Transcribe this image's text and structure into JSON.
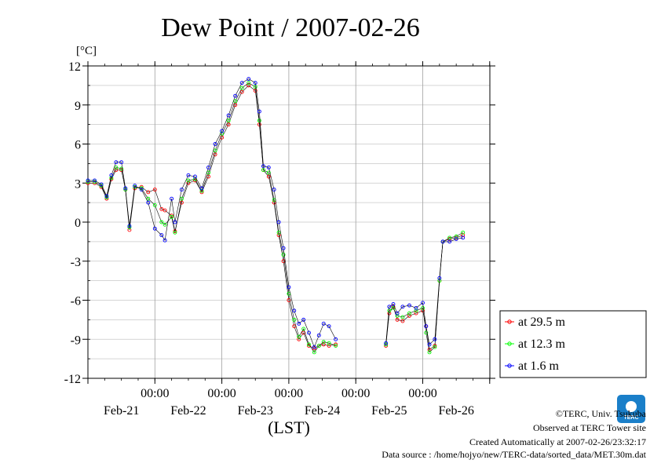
{
  "chart_data": {
    "type": "line",
    "title": "Dew Point / 2007-02-26",
    "ylabel": "[°C]",
    "xlabel": "(LST)",
    "ylim": [
      -12,
      12
    ],
    "xlim": [
      0,
      6
    ],
    "y_ticks": [
      12,
      9,
      6,
      3,
      0,
      -3,
      -6,
      -9,
      -12
    ],
    "y_tick_labels": [
      "12",
      "9",
      "6",
      "3",
      "0",
      "-3",
      "-6",
      "-9",
      "-12"
    ],
    "x_time_labels": [
      "00:00",
      "00:00",
      "00:00",
      "00:00",
      "00:00"
    ],
    "x_date_labels": [
      "Feb-21",
      "Feb-22",
      "Feb-23",
      "Feb-24",
      "Feb-25",
      "Feb-26"
    ],
    "grid": true,
    "legend_position": "right",
    "series": [
      {
        "name": "at 29.5 m",
        "color": "#ff0000",
        "points": [
          [
            0,
            3.0
          ],
          [
            0.1,
            3.0
          ],
          [
            0.2,
            2.7
          ],
          [
            0.28,
            1.8
          ],
          [
            0.35,
            3.3
          ],
          [
            0.42,
            4.0
          ],
          [
            0.5,
            4.0
          ],
          [
            0.56,
            2.5
          ],
          [
            0.62,
            -0.6
          ],
          [
            0.7,
            2.6
          ],
          [
            0.8,
            2.7
          ],
          [
            0.9,
            2.3
          ],
          [
            1.0,
            2.5
          ],
          [
            1.1,
            1.0
          ],
          [
            1.15,
            0.9
          ],
          [
            1.25,
            0.5
          ],
          [
            1.3,
            -0.7
          ],
          [
            1.4,
            1.5
          ],
          [
            1.5,
            3.0
          ],
          [
            1.6,
            3.2
          ],
          [
            1.7,
            2.3
          ],
          [
            1.8,
            3.5
          ],
          [
            1.9,
            5.2
          ],
          [
            2.0,
            6.5
          ],
          [
            2.1,
            7.5
          ],
          [
            2.2,
            9.0
          ],
          [
            2.3,
            10.0
          ],
          [
            2.4,
            10.5
          ],
          [
            2.5,
            10.1
          ],
          [
            2.56,
            7.5
          ],
          [
            2.62,
            4.0
          ],
          [
            2.7,
            3.5
          ],
          [
            2.78,
            1.5
          ],
          [
            2.85,
            -1.0
          ],
          [
            2.92,
            -3.0
          ],
          [
            3.0,
            -6.0
          ],
          [
            3.08,
            -8.0
          ],
          [
            3.15,
            -9.0
          ],
          [
            3.22,
            -8.5
          ],
          [
            3.3,
            -9.5
          ],
          [
            3.38,
            -9.7
          ],
          [
            3.45,
            -9.5
          ],
          [
            3.52,
            -9.4
          ],
          [
            3.6,
            -9.5
          ],
          [
            3.7,
            -9.4
          ]
        ],
        "gaps": [
          [
            3.7,
            4.45
          ]
        ],
        "points_after_gap": [
          [
            4.45,
            -9.5
          ],
          [
            4.5,
            -7.0
          ],
          [
            4.56,
            -6.5
          ],
          [
            4.62,
            -7.5
          ],
          [
            4.7,
            -7.6
          ],
          [
            4.8,
            -7.2
          ],
          [
            4.9,
            -7.0
          ],
          [
            5.0,
            -6.8
          ],
          [
            5.05,
            -8.0
          ],
          [
            5.1,
            -9.8
          ],
          [
            5.18,
            -9.5
          ],
          [
            5.25,
            -4.5
          ],
          [
            5.3,
            -1.5
          ],
          [
            5.4,
            -1.3
          ],
          [
            5.5,
            -1.2
          ],
          [
            5.6,
            -1.0
          ]
        ]
      },
      {
        "name": "at 12.3 m",
        "color": "#00ff00",
        "points": [
          [
            0,
            3.1
          ],
          [
            0.1,
            3.1
          ],
          [
            0.2,
            2.8
          ],
          [
            0.28,
            1.9
          ],
          [
            0.35,
            3.4
          ],
          [
            0.42,
            4.2
          ],
          [
            0.5,
            4.1
          ],
          [
            0.56,
            2.5
          ],
          [
            0.62,
            -0.4
          ],
          [
            0.7,
            2.7
          ],
          [
            0.8,
            2.6
          ],
          [
            0.9,
            1.8
          ],
          [
            1.0,
            1.3
          ],
          [
            1.1,
            0.0
          ],
          [
            1.15,
            -0.2
          ],
          [
            1.25,
            0.4
          ],
          [
            1.3,
            -0.8
          ],
          [
            1.4,
            1.8
          ],
          [
            1.5,
            3.2
          ],
          [
            1.6,
            3.3
          ],
          [
            1.7,
            2.4
          ],
          [
            1.8,
            3.8
          ],
          [
            1.9,
            5.5
          ],
          [
            2.0,
            6.8
          ],
          [
            2.1,
            7.8
          ],
          [
            2.2,
            9.3
          ],
          [
            2.3,
            10.3
          ],
          [
            2.4,
            10.7
          ],
          [
            2.5,
            10.4
          ],
          [
            2.56,
            7.8
          ],
          [
            2.62,
            4.0
          ],
          [
            2.7,
            3.8
          ],
          [
            2.78,
            1.7
          ],
          [
            2.85,
            -0.8
          ],
          [
            2.92,
            -2.5
          ],
          [
            3.0,
            -5.5
          ],
          [
            3.08,
            -7.5
          ],
          [
            3.15,
            -8.8
          ],
          [
            3.22,
            -8.2
          ],
          [
            3.3,
            -9.4
          ],
          [
            3.38,
            -10.0
          ],
          [
            3.45,
            -9.5
          ],
          [
            3.52,
            -9.2
          ],
          [
            3.6,
            -9.3
          ],
          [
            3.7,
            -9.5
          ]
        ],
        "gaps": [
          [
            3.7,
            4.45
          ]
        ],
        "points_after_gap": [
          [
            4.45,
            -9.4
          ],
          [
            4.5,
            -6.8
          ],
          [
            4.56,
            -6.6
          ],
          [
            4.62,
            -7.2
          ],
          [
            4.7,
            -7.3
          ],
          [
            4.8,
            -7.0
          ],
          [
            4.9,
            -6.8
          ],
          [
            5.0,
            -6.6
          ],
          [
            5.05,
            -8.5
          ],
          [
            5.1,
            -10.0
          ],
          [
            5.18,
            -9.6
          ],
          [
            5.25,
            -4.5
          ],
          [
            5.3,
            -1.5
          ],
          [
            5.4,
            -1.2
          ],
          [
            5.5,
            -1.1
          ],
          [
            5.6,
            -0.8
          ]
        ]
      },
      {
        "name": "at 1.6 m",
        "color": "#0000ff",
        "points": [
          [
            0,
            3.2
          ],
          [
            0.1,
            3.2
          ],
          [
            0.2,
            2.9
          ],
          [
            0.28,
            2.0
          ],
          [
            0.35,
            3.6
          ],
          [
            0.42,
            4.6
          ],
          [
            0.5,
            4.6
          ],
          [
            0.56,
            2.6
          ],
          [
            0.62,
            -0.3
          ],
          [
            0.7,
            2.8
          ],
          [
            0.8,
            2.5
          ],
          [
            0.9,
            1.5
          ],
          [
            1.0,
            -0.5
          ],
          [
            1.1,
            -1.0
          ],
          [
            1.15,
            -1.4
          ],
          [
            1.25,
            1.8
          ],
          [
            1.3,
            0.0
          ],
          [
            1.4,
            2.5
          ],
          [
            1.5,
            3.6
          ],
          [
            1.6,
            3.5
          ],
          [
            1.7,
            2.6
          ],
          [
            1.8,
            4.2
          ],
          [
            1.9,
            6.0
          ],
          [
            2.0,
            7.0
          ],
          [
            2.1,
            8.2
          ],
          [
            2.2,
            9.7
          ],
          [
            2.3,
            10.7
          ],
          [
            2.4,
            11.0
          ],
          [
            2.5,
            10.7
          ],
          [
            2.56,
            8.5
          ],
          [
            2.62,
            4.3
          ],
          [
            2.7,
            4.2
          ],
          [
            2.78,
            2.5
          ],
          [
            2.85,
            0.0
          ],
          [
            2.92,
            -2.0
          ],
          [
            3.0,
            -5.0
          ],
          [
            3.08,
            -6.8
          ],
          [
            3.15,
            -7.8
          ],
          [
            3.22,
            -7.5
          ],
          [
            3.3,
            -8.5
          ],
          [
            3.38,
            -9.6
          ],
          [
            3.45,
            -8.7
          ],
          [
            3.52,
            -7.8
          ],
          [
            3.6,
            -8.0
          ],
          [
            3.7,
            -9.0
          ]
        ],
        "gaps": [
          [
            3.7,
            4.45
          ]
        ],
        "points_after_gap": [
          [
            4.45,
            -9.3
          ],
          [
            4.5,
            -6.5
          ],
          [
            4.56,
            -6.3
          ],
          [
            4.62,
            -7.0
          ],
          [
            4.7,
            -6.5
          ],
          [
            4.8,
            -6.4
          ],
          [
            4.9,
            -6.6
          ],
          [
            5.0,
            -6.2
          ],
          [
            5.05,
            -8.0
          ],
          [
            5.1,
            -9.4
          ],
          [
            5.18,
            -9.0
          ],
          [
            5.25,
            -4.3
          ],
          [
            5.3,
            -1.5
          ],
          [
            5.4,
            -1.5
          ],
          [
            5.5,
            -1.3
          ],
          [
            5.6,
            -1.2
          ]
        ]
      }
    ]
  },
  "footer": {
    "copyright": "©TERC, Univ. Tsukuba",
    "observed": "Observed at TERC Tower site",
    "created": "Created Automatically at 2007-02-26/23:32:17",
    "source": "Data source : /home/hojyo/new/TERC-data/sorted_data/MET.30m.dat"
  },
  "logo": {
    "text": "TERC"
  }
}
